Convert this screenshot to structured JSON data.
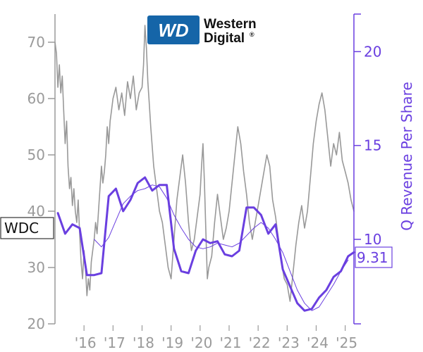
{
  "logo": {
    "mark": "WD",
    "line1": "Western",
    "line2": "Digital",
    "registered": "®",
    "color": "#1565a8"
  },
  "colors": {
    "price": "#999999",
    "revenue": "#6a3fe0",
    "axis_left": "#9a9a9a",
    "axis_right": "#6a3fe0"
  },
  "chart_data": {
    "type": "line",
    "ticker_label": "WDC",
    "last_value_label": "9.31",
    "xlabel": "",
    "ylabel_left": "",
    "ylabel_right": "Q Revenue Per Share",
    "x_ticks": [
      "'16",
      "'17",
      "'18",
      "'19",
      "'20",
      "'21",
      "'22",
      "'23",
      "'24",
      "'25"
    ],
    "y_left_ticks": [
      20,
      30,
      40,
      50,
      60,
      70
    ],
    "y_left_lim": [
      20,
      75
    ],
    "y_right_ticks": [
      10,
      15,
      20
    ],
    "y_right_lim": [
      5.5,
      22
    ],
    "x_lim": [
      2015.0,
      2025.3
    ],
    "series": [
      {
        "axis": "left",
        "style": "price",
        "x": [
          2015.0,
          2015.05,
          2015.1,
          2015.15,
          2015.2,
          2015.25,
          2015.3,
          2015.35,
          2015.4,
          2015.45,
          2015.5,
          2015.55,
          2015.6,
          2015.65,
          2015.7,
          2015.75,
          2015.8,
          2015.85,
          2015.9,
          2015.95,
          2016.0,
          2016.05,
          2016.1,
          2016.15,
          2016.2,
          2016.25,
          2016.3,
          2016.35,
          2016.4,
          2016.45,
          2016.5,
          2016.55,
          2016.6,
          2016.65,
          2016.7,
          2016.75,
          2016.8,
          2016.85,
          2016.9,
          2016.95,
          2017.0,
          2017.1,
          2017.2,
          2017.3,
          2017.4,
          2017.5,
          2017.6,
          2017.7,
          2017.8,
          2017.9,
          2018.0,
          2018.05,
          2018.1,
          2018.15,
          2018.2,
          2018.25,
          2018.3,
          2018.4,
          2018.5,
          2018.6,
          2018.7,
          2018.8,
          2018.9,
          2019.0,
          2019.1,
          2019.2,
          2019.3,
          2019.4,
          2019.5,
          2019.6,
          2019.7,
          2019.8,
          2019.9,
          2020.0,
          2020.05,
          2020.1,
          2020.15,
          2020.2,
          2020.25,
          2020.3,
          2020.4,
          2020.5,
          2020.6,
          2020.7,
          2020.8,
          2020.9,
          2021.0,
          2021.1,
          2021.2,
          2021.3,
          2021.4,
          2021.5,
          2021.6,
          2021.7,
          2021.8,
          2021.9,
          2022.0,
          2022.1,
          2022.2,
          2022.3,
          2022.4,
          2022.5,
          2022.6,
          2022.7,
          2022.8,
          2022.9,
          2023.0,
          2023.1,
          2023.2,
          2023.3,
          2023.4,
          2023.5,
          2023.6,
          2023.7,
          2023.8,
          2023.9,
          2024.0,
          2024.1,
          2024.2,
          2024.3,
          2024.4,
          2024.5,
          2024.6,
          2024.7,
          2024.8,
          2024.9,
          2025.0,
          2025.1,
          2025.2,
          2025.3
        ],
        "values": [
          70,
          68,
          62,
          66,
          61,
          64,
          58,
          52,
          56,
          48,
          44,
          46,
          41,
          44,
          40,
          38,
          42,
          36,
          31,
          28,
          33,
          30,
          25,
          28,
          26,
          31,
          33,
          35,
          38,
          36,
          40,
          44,
          48,
          45,
          47,
          50,
          55,
          52,
          56,
          58,
          60,
          62,
          58,
          61,
          57,
          63,
          60,
          64,
          58,
          61,
          62,
          66,
          73,
          69,
          63,
          59,
          55,
          48,
          44,
          40,
          38,
          34,
          30,
          28,
          35,
          42,
          46,
          50,
          45,
          38,
          33,
          35,
          39,
          43,
          48,
          52,
          45,
          36,
          28,
          30,
          32,
          38,
          43,
          39,
          35,
          37,
          40,
          45,
          50,
          55,
          52,
          47,
          43,
          38,
          35,
          38,
          41,
          44,
          47,
          50,
          48,
          42,
          39,
          35,
          31,
          28,
          27,
          24,
          29,
          34,
          38,
          41,
          37,
          40,
          46,
          52,
          56,
          59,
          61,
          58,
          53,
          48,
          52,
          50,
          54,
          49,
          47,
          45,
          42,
          40
        ]
      },
      {
        "axis": "right",
        "style": "revenue",
        "x": [
          2015.1,
          2015.35,
          2015.6,
          2015.85,
          2016.1,
          2016.35,
          2016.6,
          2016.85,
          2017.1,
          2017.35,
          2017.6,
          2017.85,
          2018.1,
          2018.35,
          2018.6,
          2018.85,
          2019.1,
          2019.35,
          2019.6,
          2019.85,
          2020.1,
          2020.35,
          2020.6,
          2020.85,
          2021.1,
          2021.35,
          2021.6,
          2021.85,
          2022.1,
          2022.35,
          2022.6,
          2022.85,
          2023.1,
          2023.35,
          2023.6,
          2023.85,
          2024.1,
          2024.35,
          2024.6,
          2024.85,
          2025.1,
          2025.3
        ],
        "values": [
          11.4,
          10.3,
          10.8,
          10.6,
          8.1,
          8.1,
          8.2,
          12.3,
          12.7,
          11.5,
          12.1,
          13.0,
          13.3,
          12.6,
          12.9,
          12.9,
          9.5,
          8.3,
          8.2,
          9.4,
          10.0,
          9.8,
          9.9,
          9.2,
          9.1,
          9.4,
          11.7,
          11.7,
          11.3,
          10.3,
          10.8,
          8.4,
          7.5,
          6.6,
          6.2,
          6.3,
          6.9,
          7.3,
          8.0,
          8.3,
          9.1,
          9.31
        ]
      },
      {
        "axis": "right",
        "style": "revenue-avg",
        "x": [
          2016.35,
          2016.6,
          2016.85,
          2017.1,
          2017.35,
          2017.6,
          2017.85,
          2018.1,
          2018.35,
          2018.6,
          2018.85,
          2019.1,
          2019.35,
          2019.6,
          2019.85,
          2020.1,
          2020.35,
          2020.6,
          2020.85,
          2021.1,
          2021.35,
          2021.6,
          2021.85,
          2022.1,
          2022.35,
          2022.6,
          2022.85,
          2023.1,
          2023.35,
          2023.6,
          2023.85,
          2024.1,
          2024.35,
          2024.6,
          2024.85,
          2025.1
        ],
        "values": [
          10.0,
          9.6,
          10.1,
          11.0,
          11.9,
          12.3,
          12.6,
          12.7,
          12.9,
          12.8,
          12.2,
          11.3,
          10.6,
          10.0,
          9.6,
          9.5,
          9.6,
          9.8,
          9.7,
          9.6,
          9.8,
          10.2,
          10.6,
          10.9,
          10.6,
          10.0,
          9.3,
          8.3,
          7.3,
          6.6,
          6.2,
          6.4,
          7.0,
          7.6,
          8.3,
          8.9
        ]
      }
    ]
  }
}
